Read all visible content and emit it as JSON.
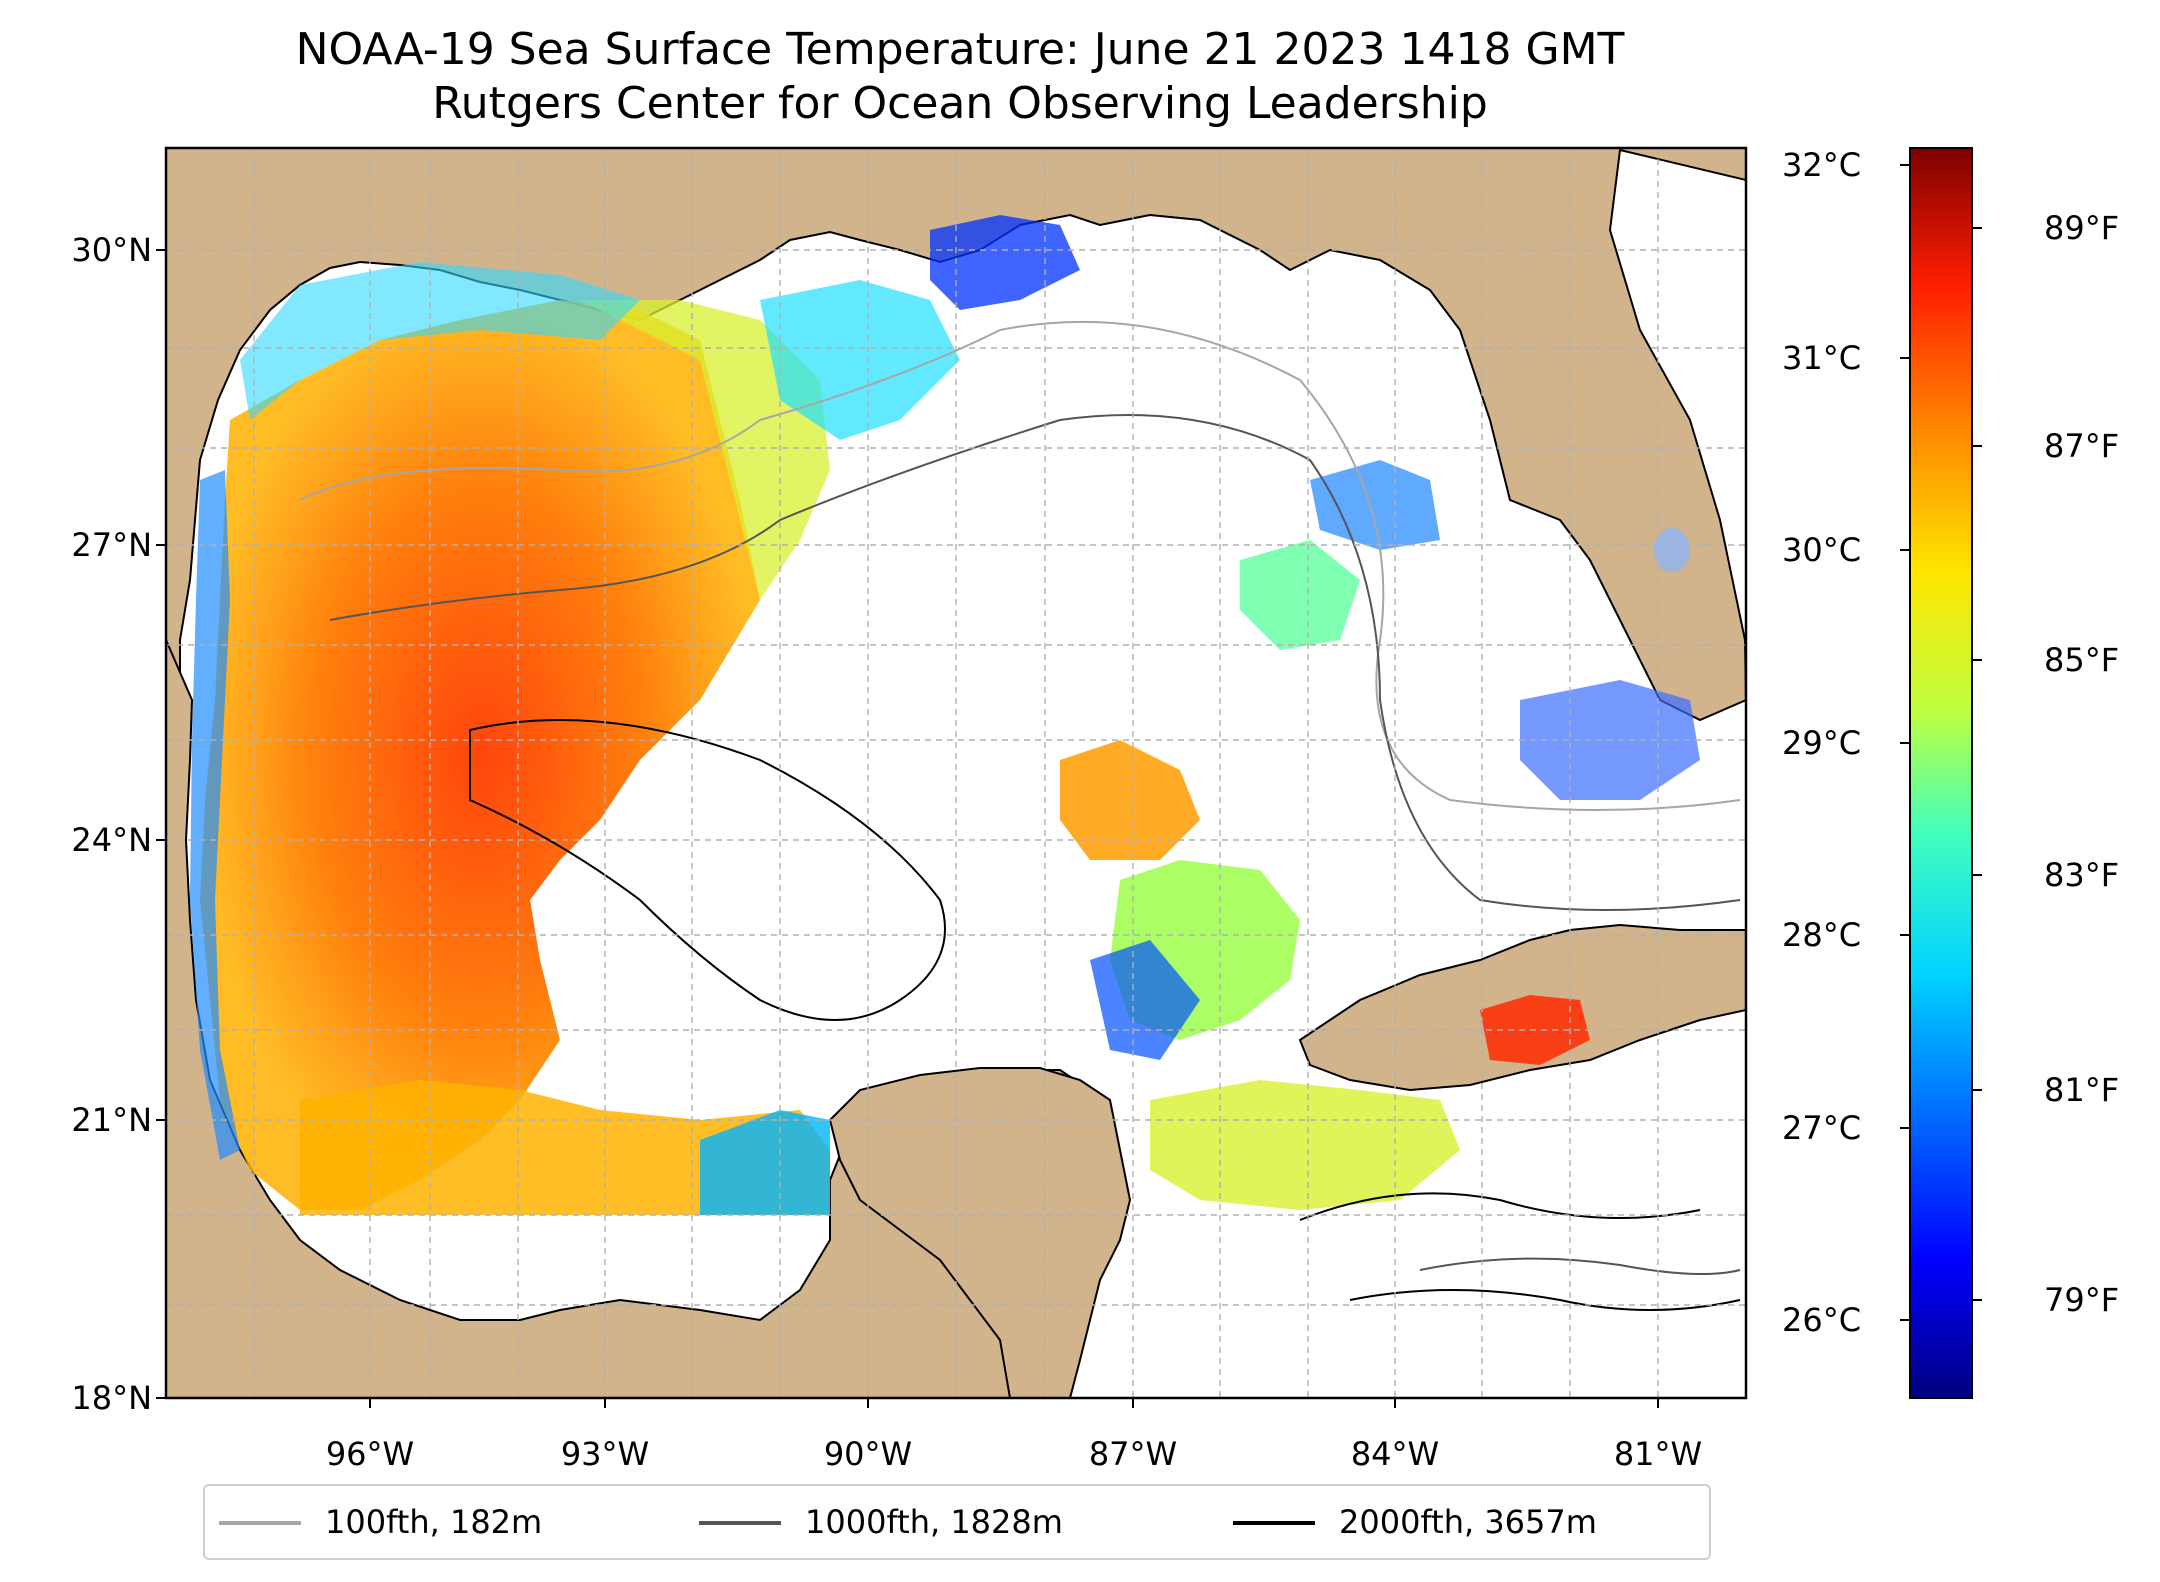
{
  "title": {
    "line1": "NOAA-19 Sea Surface Temperature: June 21 2023 1418 GMT",
    "line2": "Rutgers Center for Ocean Observing Leadership"
  },
  "map": {
    "region": "Gulf of Mexico",
    "colors": {
      "land": "#d2b48c",
      "water_no_data": "#ffffff",
      "inland_water": "#9db3e0",
      "gridline": "#b0b0b0"
    },
    "lat_labels": [
      "30°N",
      "27°N",
      "24°N",
      "21°N",
      "18°N"
    ],
    "lon_labels": [
      "96°W",
      "93°W",
      "90°W",
      "87°W",
      "84°W",
      "81°W"
    ]
  },
  "colorbar": {
    "colormap": "jet",
    "celsius_labels": [
      "32°C",
      "31°C",
      "30°C",
      "29°C",
      "28°C",
      "27°C",
      "26°C"
    ],
    "fahrenheit_labels": [
      "89°F",
      "87°F",
      "85°F",
      "83°F",
      "81°F",
      "79°F"
    ],
    "colors": [
      "#00007f",
      "#0000ff",
      "#007fff",
      "#00ffff",
      "#7fff7f",
      "#ffff00",
      "#ff7f00",
      "#ff0000",
      "#7f0000"
    ]
  },
  "legend": {
    "items": [
      {
        "label": "100fth, 182m",
        "color": "#a6a6a6"
      },
      {
        "label": "1000fth, 1828m",
        "color": "#555555"
      },
      {
        "label": "2000fth, 3657m",
        "color": "#000000"
      }
    ]
  }
}
